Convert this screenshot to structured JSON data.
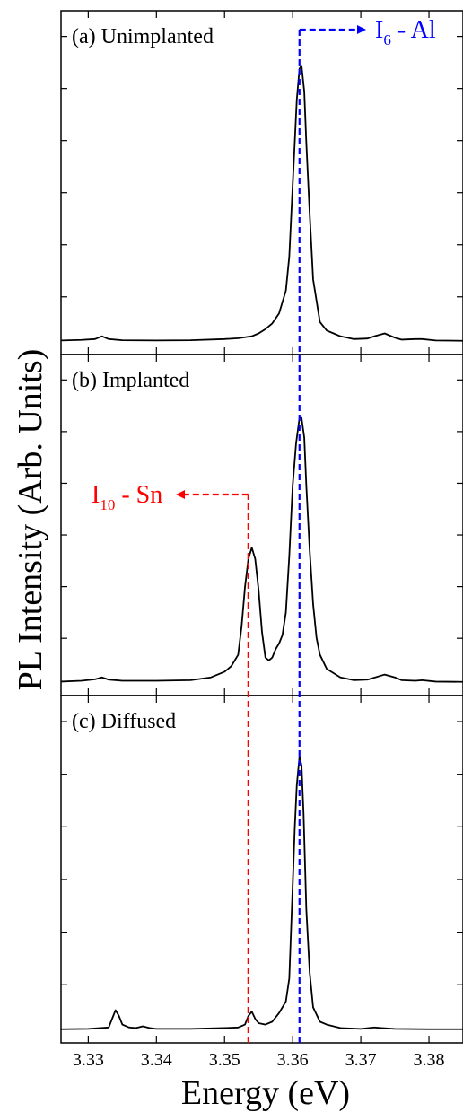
{
  "chart_data": {
    "type": "line",
    "xlabel": "Energy (eV)",
    "ylabel": "PL Intensity (Arb. Units)",
    "xlim": [
      3.326,
      3.385
    ],
    "xticks": [
      3.33,
      3.34,
      3.35,
      3.36,
      3.37,
      3.38
    ],
    "xtick_labels": [
      "3.33",
      "3.34",
      "3.35",
      "3.36",
      "3.37",
      "3.38"
    ],
    "y_tick_labels_shown": false,
    "colors": {
      "line": "#000000",
      "al_marker": "#0000ff",
      "sn_marker": "#ff0000"
    },
    "panels": [
      {
        "label": "(a) Unimplanted",
        "ylim": [
          0,
          1.05
        ],
        "series": [
          {
            "x": [
              3.326,
              3.329,
              3.331,
              3.332,
              3.333,
              3.335,
              3.34,
              3.345,
              3.35,
              3.352,
              3.354,
              3.355,
              3.356,
              3.357,
              3.358,
              3.359,
              3.3595,
              3.36,
              3.3603,
              3.3606,
              3.361,
              3.3613,
              3.3617,
              3.362,
              3.3625,
              3.363,
              3.364,
              3.365,
              3.366,
              3.367,
              3.369,
              3.371,
              3.372,
              3.3735,
              3.375,
              3.376,
              3.378,
              3.379,
              3.381,
              3.385
            ],
            "values": [
              0.005,
              0.007,
              0.01,
              0.02,
              0.01,
              0.006,
              0.005,
              0.006,
              0.01,
              0.013,
              0.02,
              0.03,
              0.045,
              0.065,
              0.1,
              0.18,
              0.3,
              0.55,
              0.7,
              0.85,
              0.96,
              0.97,
              0.88,
              0.7,
              0.45,
              0.22,
              0.07,
              0.04,
              0.03,
              0.02,
              0.01,
              0.012,
              0.02,
              0.03,
              0.015,
              0.008,
              0.01,
              0.01,
              0.005,
              0.004
            ]
          }
        ]
      },
      {
        "label": "(b) Implanted",
        "ylim": [
          0,
          1.05
        ],
        "series": [
          {
            "x": [
              3.326,
              3.329,
              3.331,
              3.332,
              3.333,
              3.335,
              3.34,
              3.345,
              3.348,
              3.35,
              3.351,
              3.352,
              3.3525,
              3.353,
              3.3535,
              3.354,
              3.3545,
              3.355,
              3.3555,
              3.356,
              3.3565,
              3.357,
              3.3575,
              3.358,
              3.3585,
              3.359,
              3.3595,
              3.36,
              3.3605,
              3.361,
              3.3613,
              3.3617,
              3.362,
              3.3625,
              3.363,
              3.3635,
              3.364,
              3.365,
              3.367,
              3.369,
              3.371,
              3.3735,
              3.375,
              3.376,
              3.378,
              3.379,
              3.381,
              3.385
            ],
            "values": [
              0.005,
              0.008,
              0.013,
              0.02,
              0.012,
              0.008,
              0.008,
              0.01,
              0.02,
              0.04,
              0.06,
              0.1,
              0.2,
              0.34,
              0.44,
              0.48,
              0.44,
              0.33,
              0.18,
              0.09,
              0.08,
              0.09,
              0.12,
              0.14,
              0.17,
              0.25,
              0.45,
              0.7,
              0.85,
              0.94,
              0.94,
              0.87,
              0.7,
              0.47,
              0.28,
              0.16,
              0.1,
              0.05,
              0.02,
              0.01,
              0.012,
              0.03,
              0.02,
              0.01,
              0.008,
              0.01,
              0.005,
              0.004
            ]
          }
        ]
      },
      {
        "label": "(c) Diffused",
        "ylim": [
          0,
          1.05
        ],
        "series": [
          {
            "x": [
              3.326,
              3.33,
              3.333,
              3.3335,
              3.334,
              3.3345,
              3.335,
              3.336,
              3.337,
              3.338,
              3.339,
              3.34,
              3.345,
              3.35,
              3.352,
              3.353,
              3.3535,
              3.354,
              3.3545,
              3.355,
              3.356,
              3.357,
              3.358,
              3.359,
              3.3595,
              3.36,
              3.3603,
              3.3606,
              3.361,
              3.3613,
              3.3616,
              3.362,
              3.3625,
              3.363,
              3.364,
              3.365,
              3.367,
              3.37,
              3.372,
              3.373,
              3.375,
              3.38,
              3.385
            ],
            "values": [
              0.004,
              0.005,
              0.01,
              0.04,
              0.07,
              0.05,
              0.02,
              0.01,
              0.008,
              0.014,
              0.008,
              0.005,
              0.005,
              0.008,
              0.01,
              0.02,
              0.05,
              0.065,
              0.04,
              0.025,
              0.02,
              0.03,
              0.06,
              0.1,
              0.18,
              0.5,
              0.7,
              0.85,
              0.95,
              0.92,
              0.75,
              0.42,
              0.2,
              0.08,
              0.03,
              0.02,
              0.008,
              0.005,
              0.01,
              0.008,
              0.005,
              0.004,
              0.004
            ]
          }
        ]
      }
    ],
    "annotations": [
      {
        "label": "I",
        "sub": "6",
        "suffix": " - Al",
        "x": 3.361,
        "color": "#0000ff",
        "direction": "right"
      },
      {
        "label": "I",
        "sub": "10",
        "suffix": " - Sn",
        "x": 3.3535,
        "color": "#ff0000",
        "direction": "left"
      }
    ]
  }
}
